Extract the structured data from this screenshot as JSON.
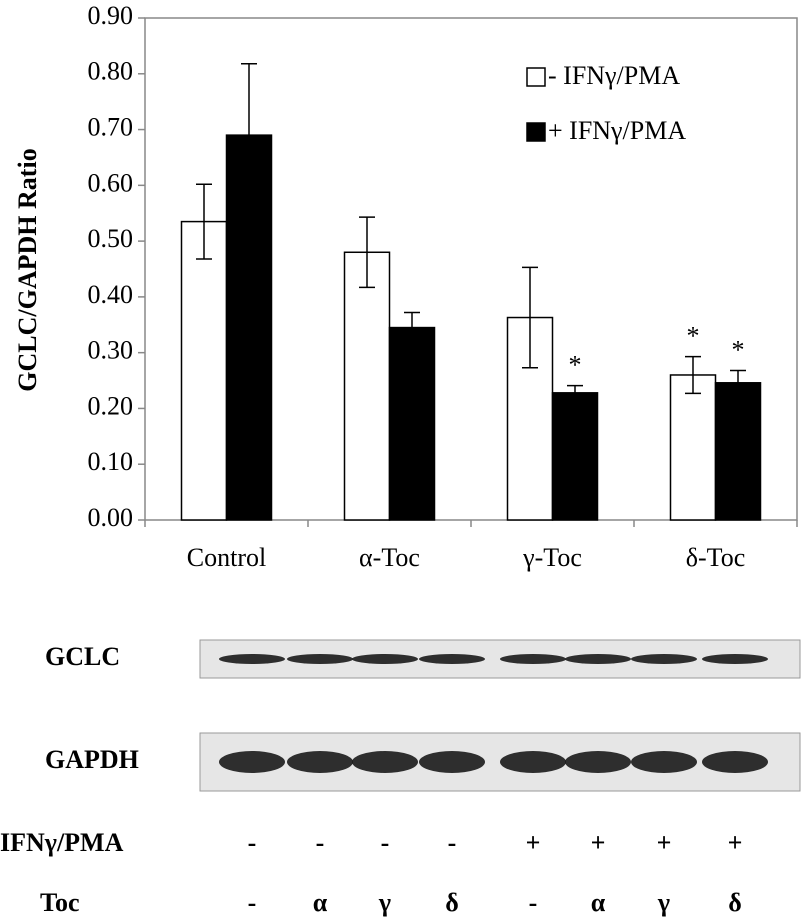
{
  "chart_data": {
    "type": "bar",
    "ylabel": "GCLC/GAPDH Ratio",
    "categories": [
      "Control",
      "α-Toc",
      "γ-Toc",
      "δ-Toc"
    ],
    "series": [
      {
        "name": "- IFNγ/PMA",
        "color": "#ffffff",
        "values": [
          0.535,
          0.48,
          0.363,
          0.26
        ],
        "errors": [
          0.067,
          0.063,
          0.09,
          0.033
        ],
        "significance": [
          null,
          null,
          null,
          "*"
        ]
      },
      {
        "name": "+ IFNγ/PMA",
        "color": "#000000",
        "values": [
          0.69,
          0.345,
          0.228,
          0.246
        ],
        "errors": [
          0.128,
          0.027,
          0.013,
          0.022
        ],
        "significance": [
          null,
          null,
          "*",
          "*"
        ]
      }
    ],
    "ylim": [
      0,
      0.9
    ],
    "yticks": [
      {
        "value": 0,
        "label": "0.00"
      },
      {
        "value": 0.1,
        "label": "0.10"
      },
      {
        "value": 0.2,
        "label": "0.20"
      },
      {
        "value": 0.3,
        "label": "0.30"
      },
      {
        "value": 0.4,
        "label": "0.40"
      },
      {
        "value": 0.5,
        "label": "0.50"
      },
      {
        "value": 0.6,
        "label": "0.60"
      },
      {
        "value": 0.7,
        "label": "0.70"
      },
      {
        "value": 0.8,
        "label": "0.80"
      },
      {
        "value": 0.9,
        "label": "0.90"
      }
    ],
    "grid": false,
    "legend": "upper right"
  },
  "blot": {
    "rows": [
      "GCLC",
      "GAPDH"
    ],
    "conditions": [
      {
        "label": "IFNγ/PMA",
        "values": [
          "-",
          "-",
          "-",
          "-",
          "+",
          "+",
          "+",
          "+"
        ]
      },
      {
        "label": "Toc",
        "values": [
          "-",
          "α",
          "γ",
          "δ",
          "-",
          "α",
          "γ",
          "δ"
        ]
      }
    ]
  }
}
